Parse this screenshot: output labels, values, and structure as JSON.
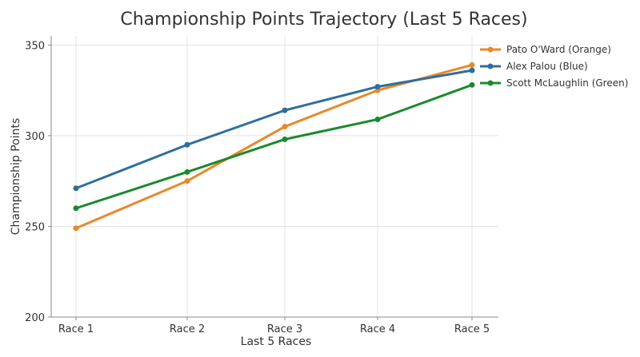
{
  "chart_data": {
    "type": "line",
    "title": "Championship Points Trajectory (Last 5 Races)",
    "xlabel": "Last 5 Races",
    "ylabel": "Championship Points",
    "categories": [
      "Race 1",
      "Race 2",
      "Race 3",
      "Race 4",
      "Race 5"
    ],
    "y_ticks": [
      200,
      250,
      300,
      350
    ],
    "ylim": [
      200,
      355
    ],
    "grid": true,
    "legend_position": "top-right",
    "series": [
      {
        "name": "Pato O'Ward (Orange)",
        "color": "#e8892a",
        "values": [
          249,
          275,
          305,
          325,
          339
        ]
      },
      {
        "name": "Alex Palou (Blue)",
        "color": "#2e6e9e",
        "values": [
          271,
          295,
          314,
          327,
          336
        ]
      },
      {
        "name": "Scott McLaughlin (Green)",
        "color": "#1a8a2e",
        "values": [
          260,
          280,
          298,
          309,
          328
        ]
      }
    ]
  }
}
